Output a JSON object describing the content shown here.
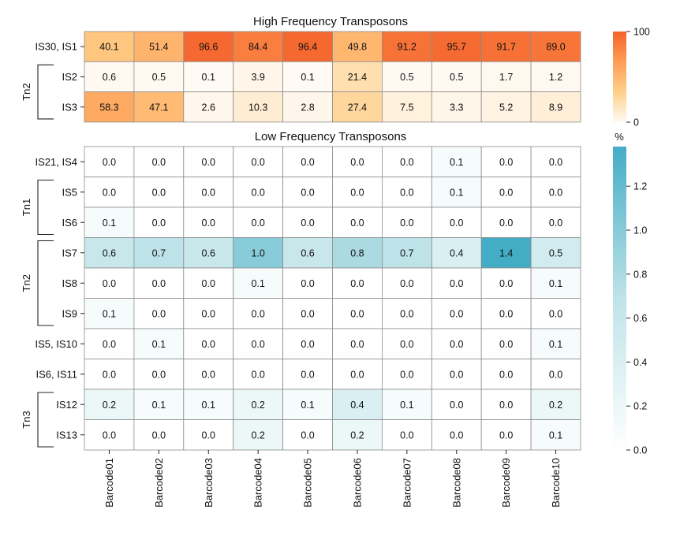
{
  "chart_data": [
    {
      "type": "heatmap",
      "title": "High Frequency Transposons",
      "columns": [
        "Barcode01",
        "Barcode02",
        "Barcode03",
        "Barcode04",
        "Barcode05",
        "Barcode06",
        "Barcode07",
        "Barcode08",
        "Barcode09",
        "Barcode10"
      ],
      "rows": [
        "IS30, IS1",
        "IS2",
        "IS3"
      ],
      "groups": [
        {
          "label": "Tn2",
          "rows": [
            "IS2",
            "IS3"
          ]
        }
      ],
      "values": [
        [
          40.1,
          51.4,
          96.6,
          84.4,
          96.4,
          49.8,
          91.2,
          95.7,
          91.7,
          89.0
        ],
        [
          0.6,
          0.5,
          0.1,
          3.9,
          0.1,
          21.4,
          0.5,
          0.5,
          1.7,
          1.2
        ],
        [
          58.3,
          47.1,
          2.6,
          10.3,
          2.8,
          27.4,
          7.5,
          3.3,
          5.2,
          8.9
        ]
      ],
      "colorbar": {
        "range": [
          0,
          100
        ],
        "ticks": [
          0,
          100
        ],
        "colors": [
          "#fffaf4",
          "#ffd08a",
          "#ff9d55",
          "#f4622c"
        ]
      }
    },
    {
      "type": "heatmap",
      "title": "Low Frequency Transposons",
      "columns": [
        "Barcode01",
        "Barcode02",
        "Barcode03",
        "Barcode04",
        "Barcode05",
        "Barcode06",
        "Barcode07",
        "Barcode08",
        "Barcode09",
        "Barcode10"
      ],
      "rows": [
        "IS21, IS4",
        "IS5",
        "IS6",
        "IS7",
        "IS8",
        "IS9",
        "IS5, IS10",
        "IS6, IS11",
        "IS12",
        "IS13"
      ],
      "groups": [
        {
          "label": "Tn1",
          "rows": [
            "IS5",
            "IS6"
          ]
        },
        {
          "label": "Tn2",
          "rows": [
            "IS7",
            "IS8",
            "IS9"
          ]
        },
        {
          "label": "Tn3",
          "rows": [
            "IS12",
            "IS13"
          ]
        }
      ],
      "values": [
        [
          0.0,
          0.0,
          0.0,
          0.0,
          0.0,
          0.0,
          0.0,
          0.1,
          0.0,
          0.0
        ],
        [
          0.0,
          0.0,
          0.0,
          0.0,
          0.0,
          0.0,
          0.0,
          0.1,
          0.0,
          0.0
        ],
        [
          0.1,
          0.0,
          0.0,
          0.0,
          0.0,
          0.0,
          0.0,
          0.0,
          0.0,
          0.0
        ],
        [
          0.6,
          0.7,
          0.6,
          1.0,
          0.6,
          0.8,
          0.7,
          0.4,
          1.4,
          0.5
        ],
        [
          0.0,
          0.0,
          0.0,
          0.1,
          0.0,
          0.0,
          0.0,
          0.0,
          0.0,
          0.1
        ],
        [
          0.1,
          0.0,
          0.0,
          0.0,
          0.0,
          0.0,
          0.0,
          0.0,
          0.0,
          0.0
        ],
        [
          0.0,
          0.1,
          0.0,
          0.0,
          0.0,
          0.0,
          0.0,
          0.0,
          0.0,
          0.1
        ],
        [
          0.0,
          0.0,
          0.0,
          0.0,
          0.0,
          0.0,
          0.0,
          0.0,
          0.0,
          0.0
        ],
        [
          0.2,
          0.1,
          0.1,
          0.2,
          0.1,
          0.4,
          0.1,
          0.0,
          0.0,
          0.2
        ],
        [
          0.0,
          0.0,
          0.0,
          0.2,
          0.0,
          0.2,
          0.0,
          0.0,
          0.0,
          0.1
        ]
      ],
      "colorbar": {
        "label": "%",
        "range": [
          0,
          1.38
        ],
        "ticks": [
          0.0,
          0.2,
          0.4,
          0.6,
          0.8,
          1.0,
          1.2
        ],
        "colors": [
          "#ffffff",
          "#bfe3e8",
          "#44adc6"
        ]
      }
    }
  ]
}
